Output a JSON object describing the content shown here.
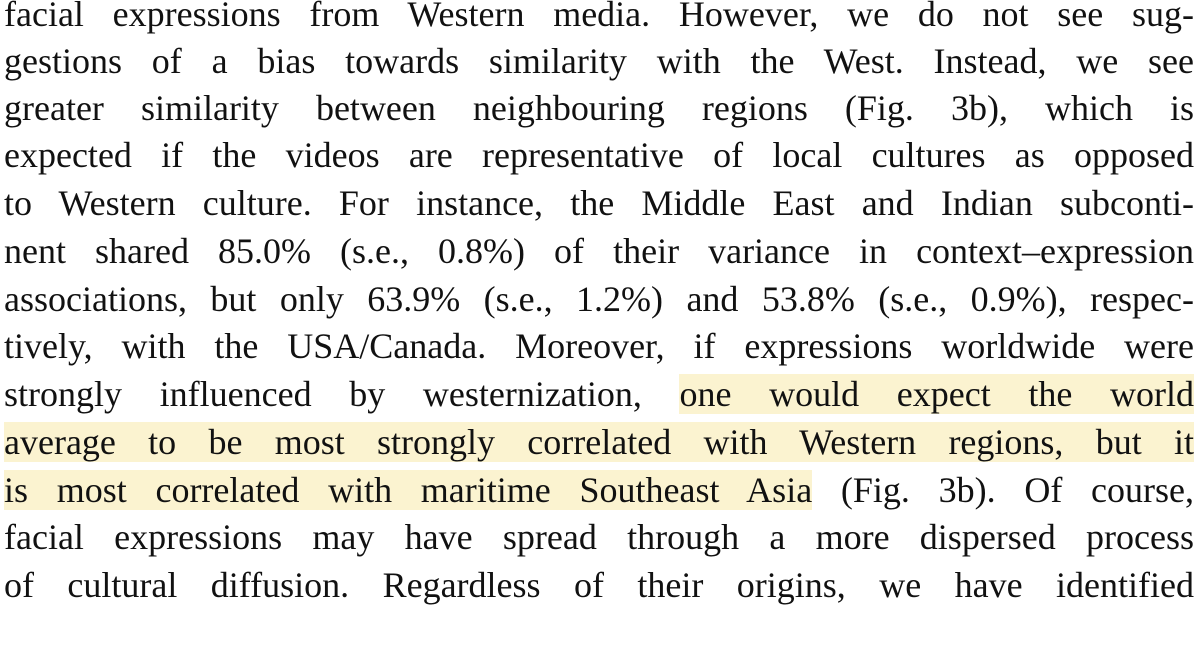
{
  "lines": [
    {
      "text": "facial expressions from Western media. However, we do not see sug-"
    },
    {
      "text": "gestions of a bias towards similarity with the West. Instead, we see"
    },
    {
      "text": "greater similarity between neighbouring regions (Fig. 3b), which is"
    },
    {
      "text": "expected if the videos are representative of local cultures as opposed"
    },
    {
      "text": "to Western culture. For instance, the Middle East and Indian subconti-"
    },
    {
      "text": "nent shared 85.0% (s.e., 0.8%) of their variance in context–expression"
    },
    {
      "text": "associations, but only 63.9% (s.e., 1.2%) and 53.8% (s.e., 0.9%), respec-"
    },
    {
      "text": "tively, with the USA/Canada. Moreover, if expressions worldwide were"
    },
    {
      "pre": "strongly influenced by westernization, ",
      "hl": "one would expect the world"
    },
    {
      "hl": "average to be most strongly correlated with Western regions, but it"
    },
    {
      "hl": "is most correlated with maritime Southeast Asia",
      "post": " (Fig. 3b). Of course,"
    },
    {
      "text": "facial expressions may have spread through a more dispersed process"
    },
    {
      "text": "of cultural diffusion. Regardless of their origins, we have identified"
    }
  ]
}
